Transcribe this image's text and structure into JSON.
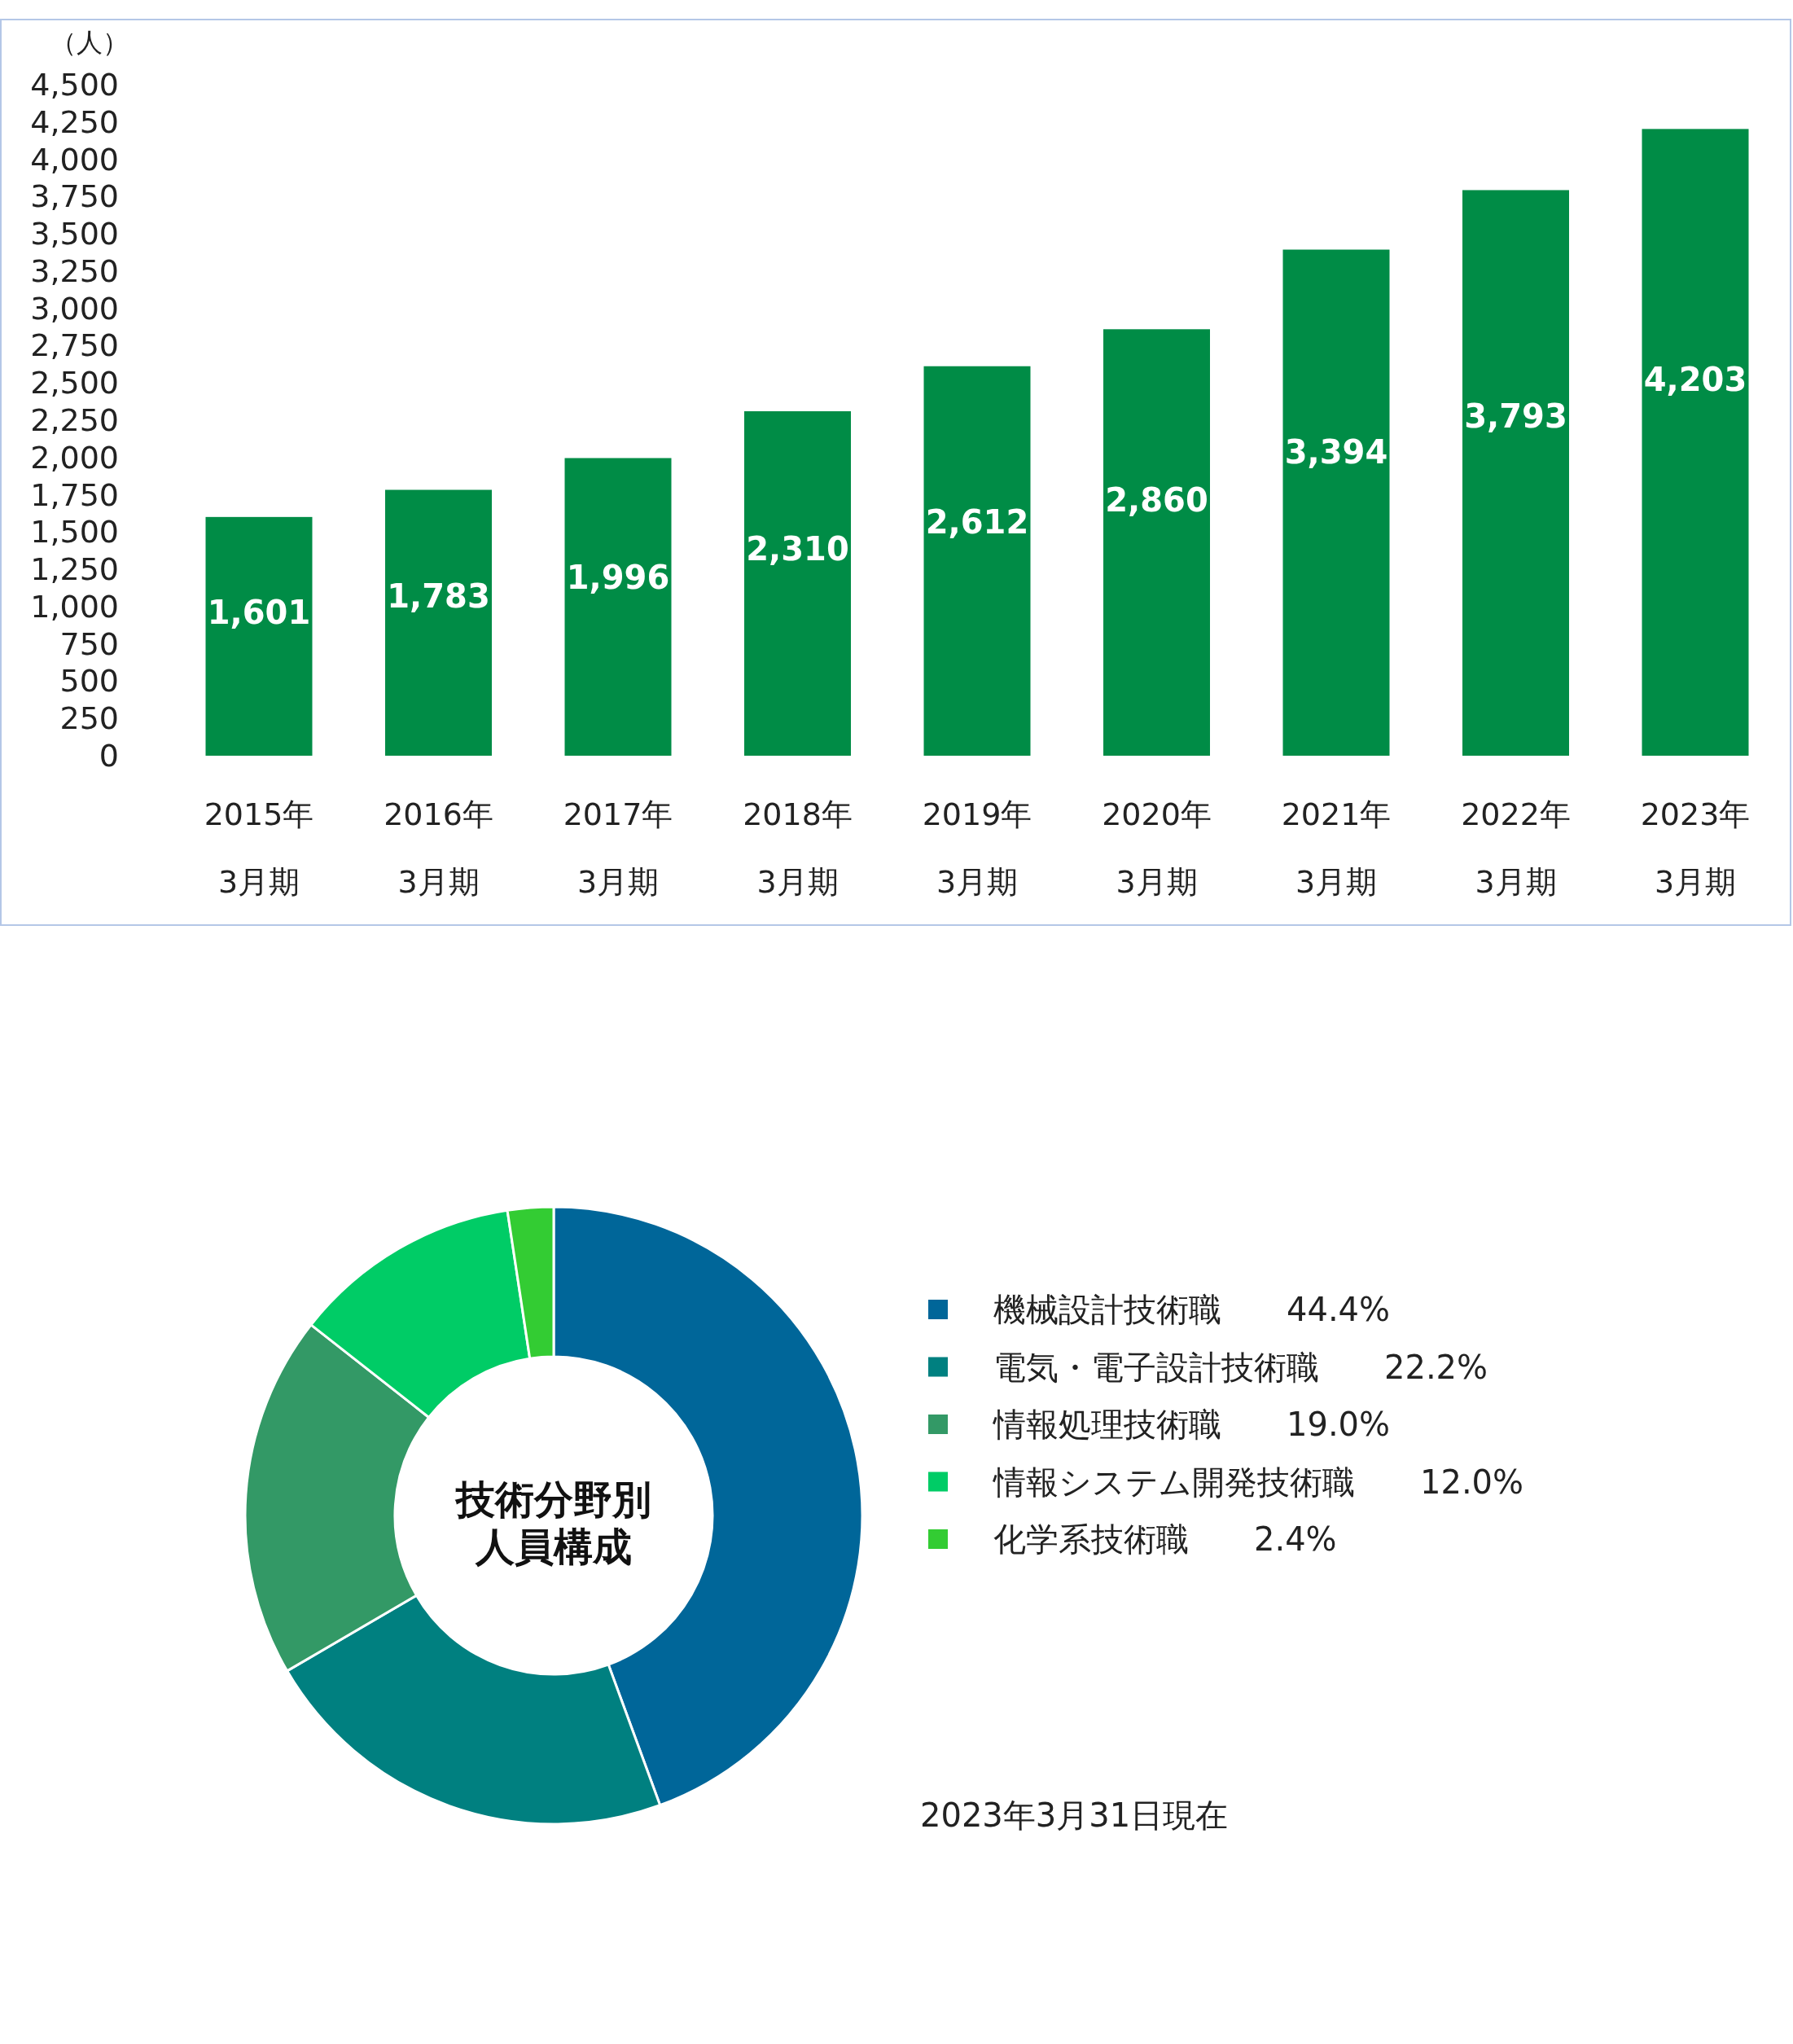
{
  "chart_data": [
    {
      "type": "bar",
      "ylabel": "（人）",
      "categories": [
        "2015年\n3月期",
        "2016年\n3月期",
        "2017年\n3月期",
        "2018年\n3月期",
        "2019年\n3月期",
        "2020年\n3月期",
        "2021年\n3月期",
        "2022年\n3月期",
        "2023年\n3月期"
      ],
      "values": [
        1601,
        1783,
        1996,
        2310,
        2612,
        2860,
        3394,
        3793,
        4203
      ],
      "value_labels": [
        "1,601",
        "1,783",
        "1,996",
        "2,310",
        "2,612",
        "2,860",
        "3,394",
        "3,793",
        "4,203"
      ],
      "color": "#008c46",
      "ylim": [
        0,
        4500
      ],
      "yticks": [
        0,
        250,
        500,
        750,
        {
          "value": 1000,
          "label": "1,000"
        },
        {
          "value": 1250,
          "label": "1,250"
        },
        {
          "value": 1500,
          "label": "1,500"
        },
        {
          "value": 1750,
          "label": "1,750"
        },
        {
          "value": 2000,
          "label": "2,000"
        },
        {
          "value": 2250,
          "label": "2,250"
        },
        {
          "value": 2500,
          "label": "2,500"
        },
        {
          "value": 2750,
          "label": "2,750"
        },
        {
          "value": 3000,
          "label": "3,000"
        },
        {
          "value": 3250,
          "label": "3,250"
        },
        {
          "value": 3500,
          "label": "3,500"
        },
        {
          "value": 3750,
          "label": "3,750"
        },
        {
          "value": 4000,
          "label": "4,000"
        },
        {
          "value": 4250,
          "label": "4,250"
        },
        {
          "value": 4500,
          "label": "4,500"
        }
      ]
    },
    {
      "type": "donut",
      "title": "技術分野別人員構成",
      "categories": [
        "機械設計技術職",
        "電気・電子設計技術職",
        "情報処理技術職",
        "情報システム開発技術職",
        "化学系技術職"
      ],
      "values": [
        44.4,
        22.2,
        19.0,
        12.0,
        2.4
      ],
      "value_labels": [
        "44.4%",
        "22.2%",
        "19.0%",
        "12.0%",
        "2.4%"
      ],
      "colors": [
        "#006699",
        "#008080",
        "#339966",
        "#00cc66",
        "#33cc33"
      ],
      "legend": "right",
      "annotations": [
        "2023年3月31日現在"
      ]
    }
  ]
}
